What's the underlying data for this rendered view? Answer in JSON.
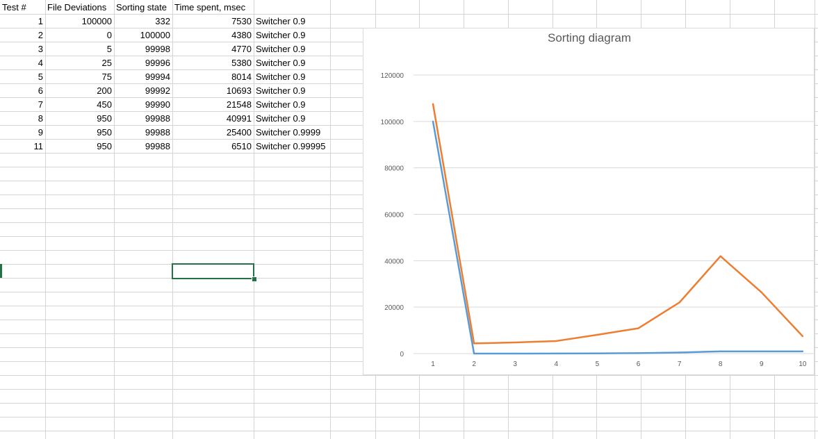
{
  "sheet": {
    "headers": [
      "Test #",
      "File Deviations",
      "Sorting state",
      "Time spent, msec"
    ],
    "rows": [
      [
        "1",
        "100000",
        "332",
        "7530",
        "Switcher 0.9"
      ],
      [
        "2",
        "0",
        "100000",
        "4380",
        "Switcher 0.9"
      ],
      [
        "3",
        "5",
        "99998",
        "4770",
        "Switcher 0.9"
      ],
      [
        "4",
        "25",
        "99996",
        "5380",
        "Switcher 0.9"
      ],
      [
        "5",
        "75",
        "99994",
        "8014",
        "Switcher 0.9"
      ],
      [
        "6",
        "200",
        "99992",
        "10693",
        "Switcher 0.9"
      ],
      [
        "7",
        "450",
        "99990",
        "21548",
        "Switcher 0.9"
      ],
      [
        "8",
        "950",
        "99988",
        "40991",
        "Switcher 0.9"
      ],
      [
        "9",
        "950",
        "99988",
        "25400",
        "Switcher 0.9999"
      ],
      [
        "11",
        "950",
        "99988",
        "6510",
        "Switcher 0.99995"
      ]
    ],
    "accent_color": "#217346"
  },
  "chart_data": {
    "type": "line",
    "title": "Sorting diagram",
    "x": [
      1,
      2,
      3,
      4,
      5,
      6,
      7,
      8,
      9,
      10
    ],
    "ylim": [
      0,
      120000
    ],
    "yticks": [
      0,
      20000,
      40000,
      60000,
      80000,
      100000,
      120000
    ],
    "grid": true,
    "series": [
      {
        "color": "#5b9bd5",
        "values": [
          100000,
          0,
          5,
          25,
          75,
          200,
          450,
          950,
          950,
          950
        ]
      },
      {
        "color": "#ed7d31",
        "values": [
          107530,
          4380,
          4775,
          5405,
          8089,
          10893,
          21998,
          41941,
          26350,
          7460
        ]
      }
    ]
  }
}
